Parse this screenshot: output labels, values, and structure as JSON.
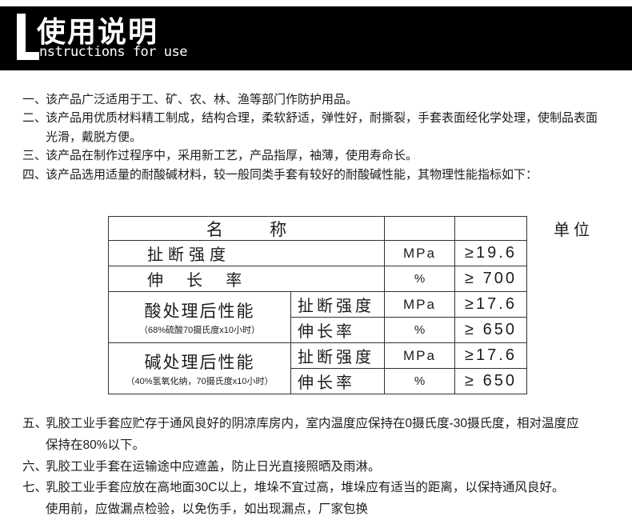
{
  "colors": {
    "banner_background": "#000000",
    "banner_text": "#ffffff",
    "body_text": "#1c1c1c",
    "table_border": "#333333"
  },
  "banner": {
    "big_letter": "L",
    "title_cn": "使用说明",
    "title_en": "nstructions for use"
  },
  "intro_items": [
    {
      "num": "一、",
      "lines": [
        "该产品广泛适用于工、矿、农、林、渔等部门作防护用品。"
      ]
    },
    {
      "num": "二、",
      "lines": [
        "该产品用优质材料精工制成，结构合理，柔软舒适，弹性好，耐撕裂，手套表面经化学处理，使制品表面",
        "光滑，戴脱方便。"
      ]
    },
    {
      "num": "三、",
      "lines": [
        "该产品在制作过程序中，采用新工艺，产品指厚，袖薄，使用寿命长。"
      ]
    },
    {
      "num": "四、",
      "lines": [
        "该产品选用适量的耐酸碱材料，较一般同类手套有较好的耐酸碱性能，其物理性能指标如下："
      ]
    }
  ],
  "table": {
    "header_name": "名          称",
    "unit_label": "单位",
    "simple_rows": [
      {
        "name": "扯断强度",
        "unit": "MPa",
        "value": "≥19.6"
      },
      {
        "name": "伸  长  率",
        "unit": "%",
        "value": "≥ 700"
      }
    ],
    "group_rows": [
      {
        "group": "酸处理后性能",
        "note": "（68%硫酸70摄氏度x10小时）",
        "subs": [
          {
            "name": "扯断强度",
            "unit": "MPa",
            "value": "≥17.6"
          },
          {
            "name": "伸长率",
            "unit": "%",
            "value": "≥ 650"
          }
        ]
      },
      {
        "group": "碱处理后性能",
        "note": "（40%氢氧化纳，70摄氏度x10小时）",
        "subs": [
          {
            "name": "扯断强度",
            "unit": "MPa",
            "value": "≥17.6"
          },
          {
            "name": "伸长率",
            "unit": "%",
            "value": "≥ 650"
          }
        ]
      }
    ]
  },
  "storage_items": [
    {
      "num": "五、",
      "lines": [
        "乳胶工业手套应贮存于通风良好的阴凉库房内，室内温度应保持在0摄氏度-30摄氏度，相对温度应",
        "保持在80%以下。"
      ]
    },
    {
      "num": "六、",
      "lines": [
        "乳胶工业手套在运输途中应遮盖，防止日光直接照晒及雨淋。"
      ]
    },
    {
      "num": "七、",
      "lines": [
        "乳胶工业手套应放在高地面30C以上，堆垛不宜过高，堆垛应有适当的距离，以保持通风良好。",
        "使用前，应做漏点检验，以免伤手，如出现漏点，厂家包换"
      ]
    }
  ]
}
